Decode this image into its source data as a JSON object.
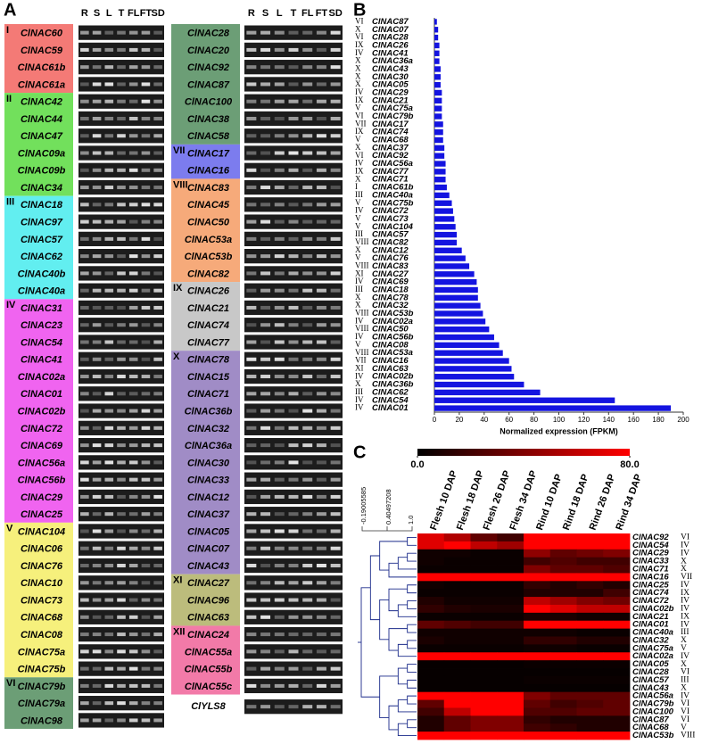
{
  "panel_labels": [
    "A",
    "B",
    "C"
  ],
  "panel_a": {
    "lanes": [
      "R",
      "S",
      "L",
      "T",
      "FL",
      "FT",
      "SD"
    ],
    "columns": [
      {
        "groups": [
          {
            "numeral": "I",
            "color": "#f47a76",
            "genes": [
              "ClNAC60",
              "ClNAC59",
              "ClNAC61b",
              "ClNAC61a"
            ]
          },
          {
            "numeral": "II",
            "color": "#72e05c",
            "genes": [
              "ClNAC42",
              "ClNAC44",
              "ClNAC47",
              "ClNAC09a",
              "ClNAC09b",
              "ClNAC34"
            ]
          },
          {
            "numeral": "III",
            "color": "#62eef0",
            "genes": [
              "ClNAC18",
              "ClNAC97",
              "ClNAC57",
              "ClNAC62",
              "ClNAC40b",
              "ClNAC40a"
            ]
          },
          {
            "numeral": "IV",
            "color": "#f064f0",
            "genes": [
              "ClNAC31",
              "ClNAC23",
              "ClNAC54",
              "ClNAC41",
              "ClNAC02a",
              "ClNAC01",
              "ClNAC02b",
              "ClNAC72",
              "ClNAC69",
              "ClNAC56a",
              "ClNAC56b",
              "ClNAC29",
              "ClNAC25"
            ]
          },
          {
            "numeral": "V",
            "color": "#f6f07c",
            "genes": [
              "ClNAC104",
              "ClNAC06",
              "ClNAC76",
              "ClNAC10",
              "ClNAC73",
              "ClNAC68",
              "ClNAC08",
              "ClNAC75a",
              "ClNAC75b"
            ]
          },
          {
            "numeral": "VI",
            "color": "#6c9e76",
            "genes": [
              "ClNAC79b",
              "ClNAC79a",
              "ClNAC98"
            ]
          }
        ]
      },
      {
        "groups": [
          {
            "color": "#6c9e76",
            "genes": [
              "ClNAC28",
              "ClNAC20",
              "ClNAC92",
              "ClNAC87",
              "ClNAC100",
              "ClNAC38",
              "ClNAC58"
            ]
          },
          {
            "numeral": "VII",
            "color": "#7c7cee",
            "genes": [
              "ClNAC17",
              "ClNAC16"
            ]
          },
          {
            "numeral": "VIII",
            "color": "#f6aa7a",
            "genes": [
              "ClNAC83",
              "ClNAC45",
              "ClNAC50",
              "ClNAC53a",
              "ClNAC53b",
              "ClNAC82"
            ]
          },
          {
            "numeral": "IX",
            "color": "#c8c8c8",
            "genes": [
              "ClNAC26",
              "ClNAC21",
              "ClNAC74",
              "ClNAC77"
            ]
          },
          {
            "numeral": "X",
            "color": "#a08cc6",
            "genes": [
              "ClNAC78",
              "ClNAC15",
              "ClNAC71",
              "ClNAC36b",
              "ClNAC32",
              "ClNAC36a",
              "ClNAC30",
              "ClNAC33",
              "ClNAC12",
              "ClNAC37",
              "ClNAC05",
              "ClNAC07",
              "ClNAC43"
            ]
          },
          {
            "numeral": "XI",
            "color": "#bcbc7c",
            "genes": [
              "ClNAC27",
              "ClNAC96",
              "ClNAC63"
            ]
          },
          {
            "numeral": "XII",
            "color": "#f27aa8",
            "genes": [
              "ClNAC24",
              "ClNAC55a",
              "ClNAC55b",
              "ClNAC55c"
            ]
          }
        ]
      }
    ],
    "reference_gene": "ClYLS8"
  },
  "chart_data": [
    {
      "type": "bar",
      "orientation": "horizontal",
      "categories": [
        "ClNAC87",
        "ClNAC07",
        "ClNAC28",
        "ClNAC26",
        "ClNAC41",
        "ClNAC36a",
        "ClNAC43",
        "ClNAC30",
        "ClNAC05",
        "ClNAC29",
        "ClNAC21",
        "ClNAC75a",
        "ClNAC79b",
        "ClNAC17",
        "ClNAC74",
        "ClNAC68",
        "ClNAC37",
        "ClNAC92",
        "ClNAC56a",
        "ClNAC77",
        "ClNAC71",
        "ClNAC61b",
        "ClNAC40a",
        "ClNAC75b",
        "ClNAC72",
        "ClNAC73",
        "ClNAC104",
        "ClNAC57",
        "ClNAC82",
        "ClNAC12",
        "ClNAC76",
        "ClNAC83",
        "ClNAC27",
        "ClNAC69",
        "ClNAC18",
        "ClNAC78",
        "ClNAC32",
        "ClNAC53b",
        "ClNAC02a",
        "ClNAC50",
        "ClNAC56b",
        "ClNAC08",
        "ClNAC53a",
        "ClNAC16",
        "ClNAC63",
        "ClNAC02b",
        "ClNAC36b",
        "ClNAC62",
        "ClNAC54",
        "ClNAC01"
      ],
      "category_groups": [
        "VI",
        "X",
        "VI",
        "IX",
        "IV",
        "X",
        "X",
        "X",
        "X",
        "IV",
        "IX",
        "V",
        "VI",
        "VII",
        "IX",
        "V",
        "X",
        "VI",
        "IV",
        "IX",
        "X",
        "I",
        "III",
        "V",
        "IV",
        "V",
        "V",
        "III",
        "VIII",
        "X",
        "V",
        "VIII",
        "XI",
        "IV",
        "III",
        "X",
        "X",
        "VIII",
        "IV",
        "VIII",
        "IV",
        "V",
        "VIII",
        "VII",
        "XI",
        "IV",
        "X",
        "III",
        "IV",
        "IV"
      ],
      "values": [
        2,
        3,
        3,
        4,
        4,
        4,
        5,
        5,
        5,
        6,
        6,
        6,
        6,
        7,
        7,
        7,
        8,
        8,
        9,
        9,
        9,
        10,
        12,
        14,
        15,
        16,
        17,
        18,
        18,
        22,
        25,
        28,
        32,
        34,
        35,
        35,
        37,
        39,
        41,
        44,
        48,
        52,
        55,
        60,
        62,
        64,
        72,
        85,
        145,
        190
      ],
      "color": "#1414e0",
      "xlim": [
        0,
        200
      ],
      "xticks": [
        0,
        20,
        40,
        60,
        80,
        100,
        120,
        140,
        160,
        180,
        200
      ],
      "xlabel": "Normalized expression (FPKM)"
    },
    {
      "type": "heatmap",
      "x": [
        "Flesh 10 DAP",
        "Flesh 18 DAP",
        "Flesh 26 DAP",
        "Flesh 34 DAP",
        "Rind 10 DAP",
        "Rind 18 DAP",
        "Rind 26 DAP",
        "Rind 34 DAP"
      ],
      "y": [
        "ClNAC92",
        "ClNAC54",
        "ClNAC29",
        "ClNAC33",
        "ClNAC71",
        "ClNAC16",
        "ClNAC25",
        "ClNAC74",
        "ClNAC72",
        "ClNAC02b",
        "ClNAC21",
        "ClNAC01",
        "ClNAC40a",
        "ClNAC32",
        "ClNAC75a",
        "ClNAC02a",
        "ClNAC05",
        "ClNAC28",
        "ClNAC57",
        "ClNAC43",
        "ClNAC56a",
        "ClNAC79b",
        "ClNAC100",
        "ClNAC87",
        "ClNAC68",
        "ClNAC53b"
      ],
      "y_groups": [
        "VI",
        "IV",
        "IV",
        "X",
        "X",
        "VII",
        "IV",
        "IX",
        "IV",
        "IV",
        "IX",
        "IV",
        "III",
        "X",
        "V",
        "IV",
        "X",
        "VI",
        "III",
        "X",
        "IV",
        "VI",
        "VI",
        "VI",
        "V",
        "VIII"
      ],
      "values": [
        [
          70,
          55,
          30,
          20,
          80,
          80,
          80,
          80
        ],
        [
          70,
          80,
          60,
          50,
          80,
          80,
          80,
          80
        ],
        [
          5,
          5,
          3,
          3,
          45,
          30,
          35,
          40
        ],
        [
          5,
          3,
          3,
          3,
          20,
          25,
          20,
          20
        ],
        [
          3,
          3,
          3,
          3,
          40,
          30,
          30,
          25
        ],
        [
          80,
          80,
          80,
          80,
          80,
          80,
          80,
          80
        ],
        [
          5,
          3,
          3,
          3,
          15,
          10,
          15,
          10
        ],
        [
          3,
          3,
          3,
          3,
          10,
          10,
          10,
          20
        ],
        [
          10,
          5,
          5,
          5,
          60,
          50,
          40,
          35
        ],
        [
          15,
          10,
          8,
          8,
          80,
          70,
          60,
          60
        ],
        [
          3,
          3,
          3,
          3,
          8,
          8,
          5,
          5
        ],
        [
          30,
          25,
          20,
          20,
          80,
          80,
          80,
          80
        ],
        [
          5,
          5,
          5,
          5,
          5,
          5,
          3,
          3
        ],
        [
          8,
          5,
          5,
          5,
          15,
          15,
          10,
          10
        ],
        [
          3,
          3,
          3,
          3,
          5,
          5,
          3,
          3
        ],
        [
          80,
          80,
          80,
          80,
          80,
          80,
          80,
          80
        ],
        [
          2,
          2,
          2,
          2,
          3,
          3,
          3,
          3
        ],
        [
          2,
          2,
          2,
          2,
          2,
          2,
          2,
          2
        ],
        [
          2,
          2,
          2,
          2,
          3,
          3,
          3,
          3
        ],
        [
          2,
          2,
          2,
          2,
          2,
          2,
          2,
          2
        ],
        [
          80,
          80,
          80,
          80,
          40,
          30,
          30,
          30
        ],
        [
          30,
          80,
          80,
          80,
          30,
          20,
          25,
          30
        ],
        [
          20,
          60,
          80,
          80,
          25,
          25,
          30,
          30
        ],
        [
          10,
          30,
          40,
          40,
          15,
          10,
          10,
          10
        ],
        [
          10,
          30,
          40,
          40,
          20,
          15,
          10,
          10
        ],
        [
          80,
          80,
          80,
          80,
          80,
          80,
          80,
          80
        ]
      ],
      "zlim": [
        0,
        80
      ],
      "zticks": [
        {
          "value": 0,
          "label": "0.0"
        },
        {
          "value": 80,
          "label": "80.0"
        }
      ],
      "colors": [
        "#000000",
        "#ff0000"
      ],
      "dendrogram_scale_labels": [
        "-0.19005585",
        "0.40497208",
        "1.0"
      ]
    }
  ]
}
